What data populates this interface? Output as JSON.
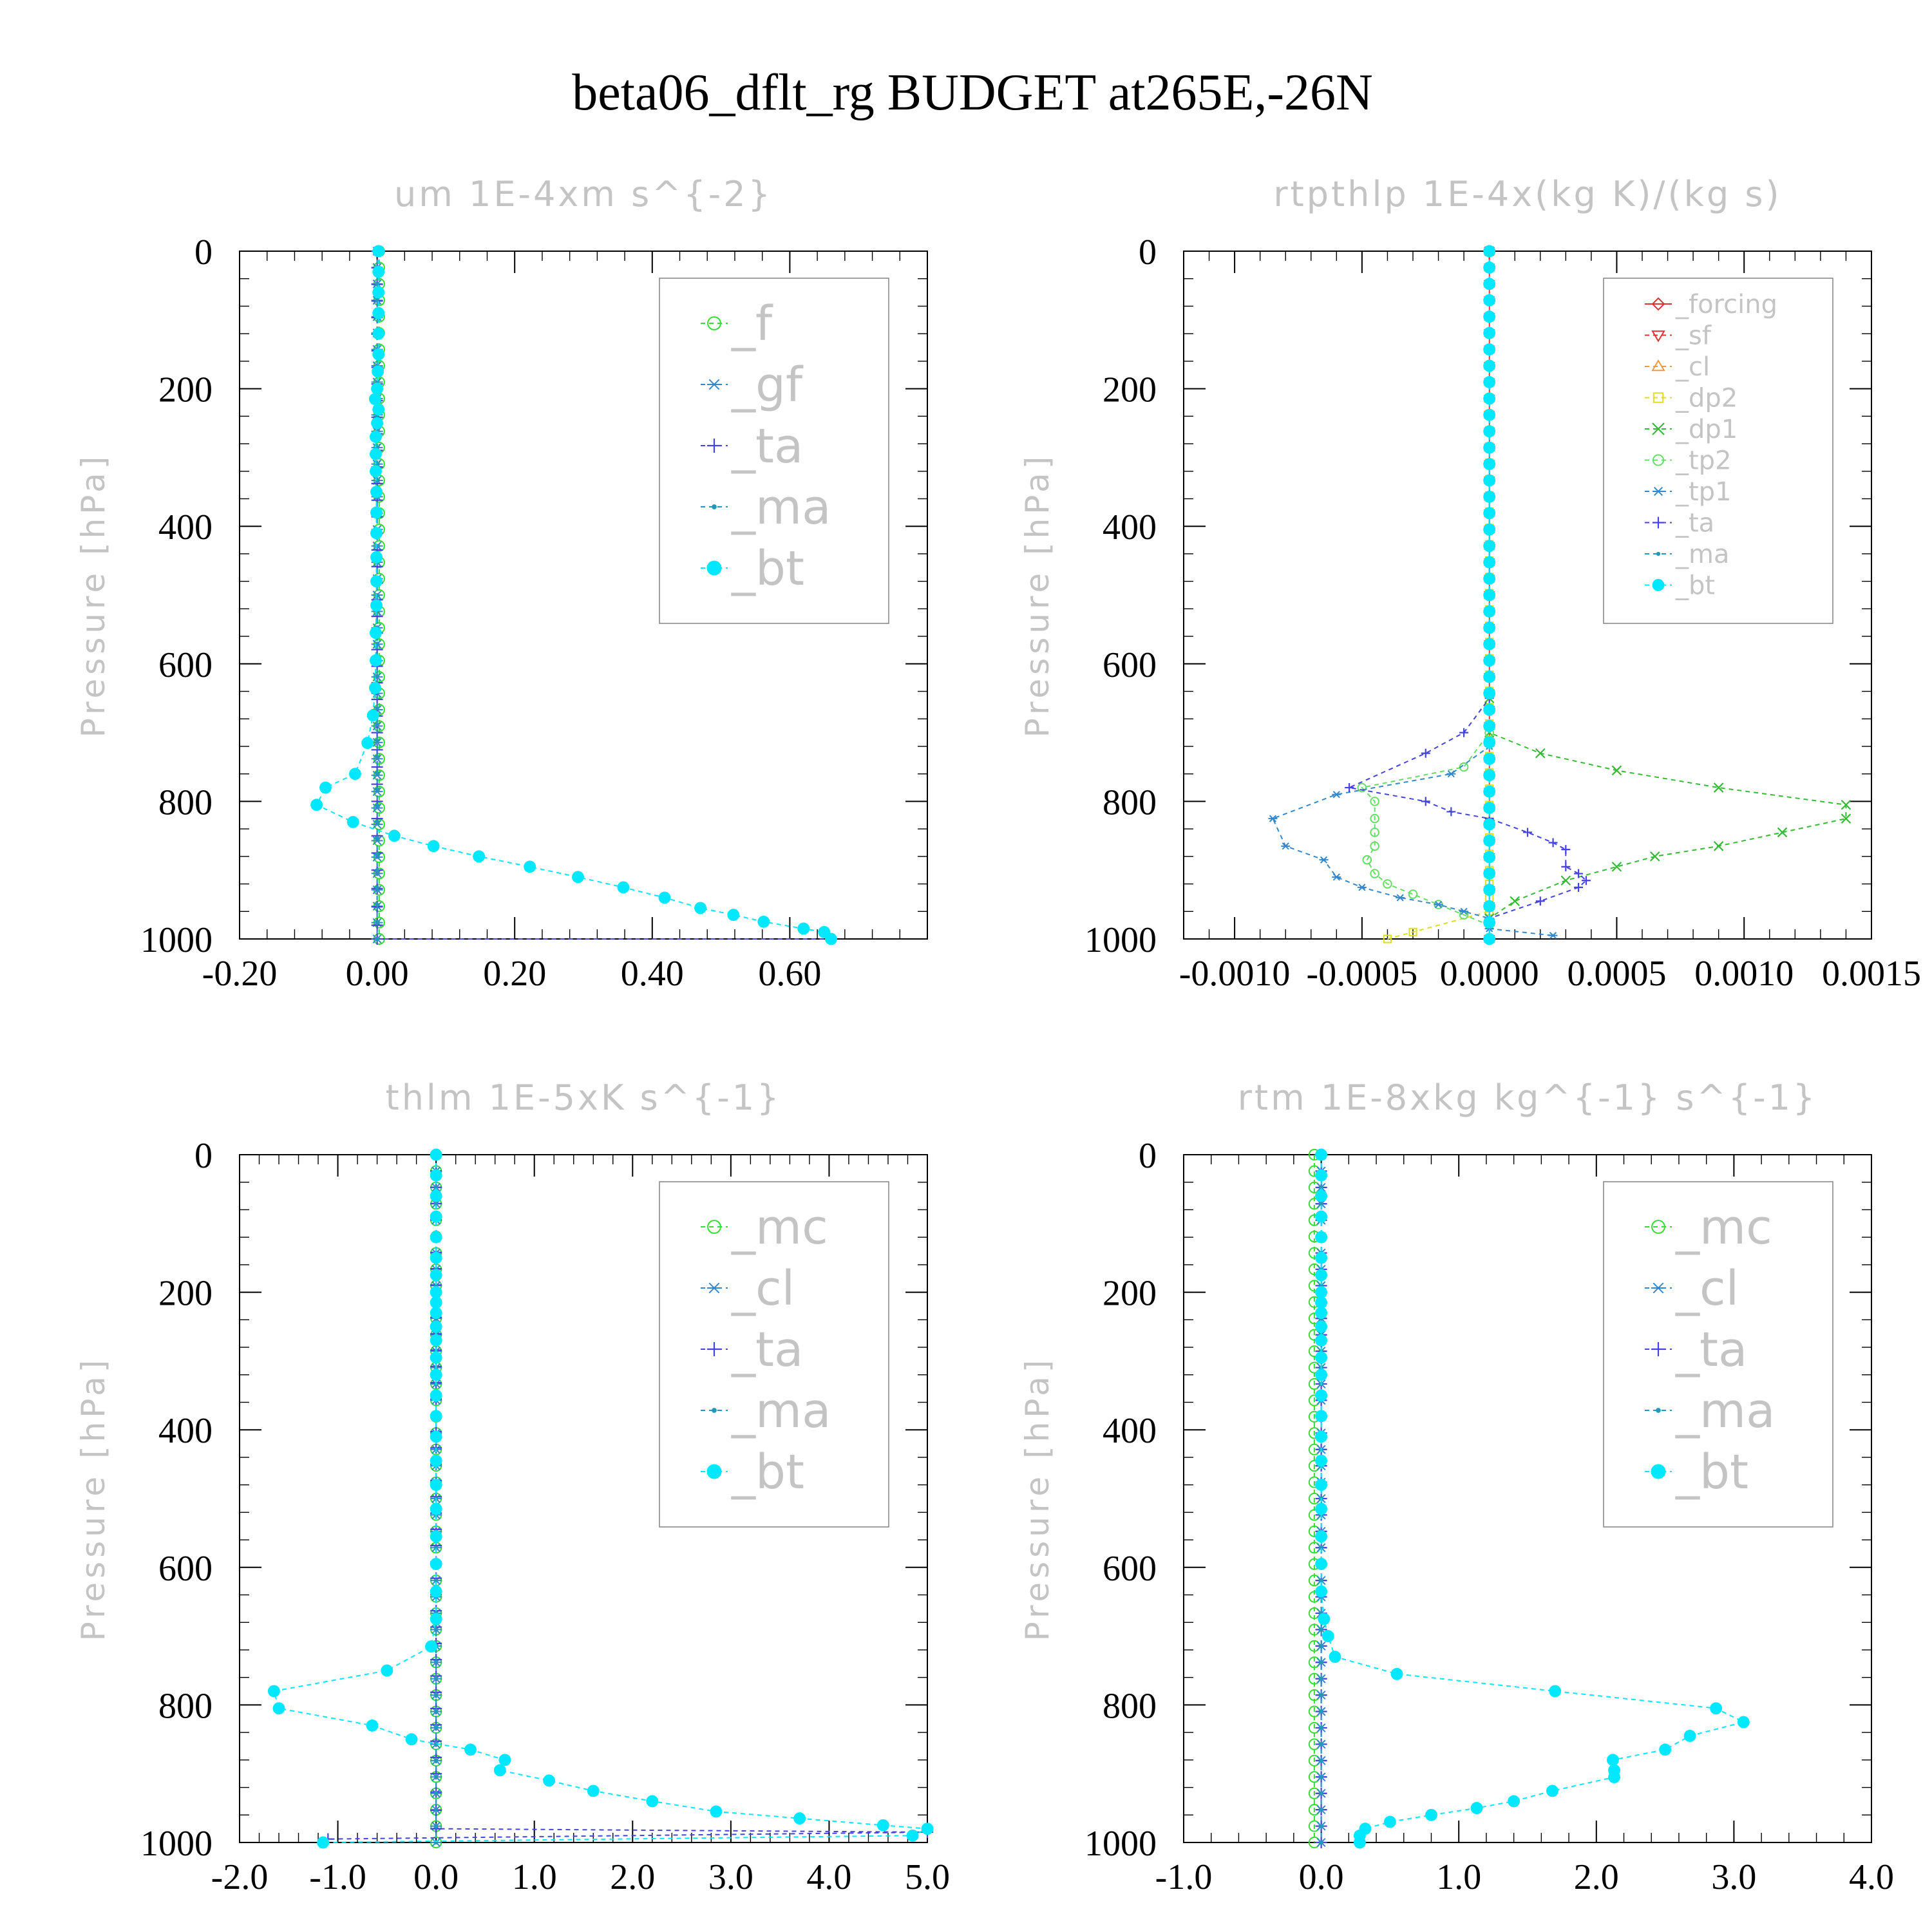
{
  "page_title": "beta06_dflt_rg  BUDGET at265E,-26N",
  "chart_data": [
    {
      "type": "line",
      "title": "um  1E-4xm s^{-2}",
      "ylabel": "Pressure [hPa]",
      "xlim": [
        -0.2,
        0.8
      ],
      "ylim": [
        1000,
        0
      ],
      "y_inverted": true,
      "xticks": [
        -0.2,
        0.0,
        0.2,
        0.4,
        0.6
      ],
      "xtick_labels": [
        "-0.20",
        "0.00",
        "0.20",
        "0.40",
        "0.60"
      ],
      "yticks": [
        0,
        200,
        400,
        600,
        800,
        1000
      ],
      "ytick_labels": [
        "0",
        "200",
        "400",
        "600",
        "800",
        "1000"
      ],
      "legend_position": "top-right",
      "legend_size": "large",
      "series": [
        {
          "name": "_f",
          "color": "#33dd33",
          "marker": "circle",
          "style": "dashed",
          "x": [
            0.003,
            0.003
          ],
          "y": [
            0,
            1000
          ]
        },
        {
          "name": "_gf",
          "color": "#3388cc",
          "marker": "asterisk",
          "style": "dashed",
          "x": [
            0.0,
            0.0
          ],
          "y": [
            0,
            1000
          ]
        },
        {
          "name": "_ta",
          "color": "#4444dd",
          "marker": "plus",
          "style": "dashed",
          "x": [
            0.0,
            0.0,
            0.0,
            0.0,
            0.0,
            0.66
          ],
          "y": [
            0,
            700,
            900,
            980,
            1000,
            1000
          ]
        },
        {
          "name": "_ma",
          "color": "#2299bb",
          "marker": "dot",
          "style": "dashed",
          "x": [
            0.0,
            0.0,
            0.0,
            0.0
          ],
          "y": [
            0,
            500,
            900,
            1000
          ]
        },
        {
          "name": "_bt",
          "color": "#00e8ff",
          "marker": "filled-circle",
          "style": "dashed",
          "x": [
            0.002,
            0.002,
            0.002,
            0.002,
            0.002,
            0.002,
            0.001,
            0.0,
            -0.003,
            0.002,
            0.0,
            -0.002,
            -0.002,
            -0.002,
            -0.001,
            -0.001,
            -0.001,
            -0.001,
            -0.001,
            -0.001,
            -0.002,
            -0.002,
            -0.003,
            -0.006,
            -0.014,
            -0.032,
            -0.075,
            -0.088,
            -0.035,
            0.025,
            0.082,
            0.148,
            0.222,
            0.292,
            0.358,
            0.418,
            0.47,
            0.518,
            0.562,
            0.62,
            0.65,
            0.66
          ],
          "y": [
            0,
            30,
            60,
            90,
            120,
            150,
            175,
            200,
            215,
            230,
            250,
            270,
            295,
            320,
            350,
            380,
            410,
            445,
            480,
            515,
            555,
            595,
            635,
            675,
            715,
            760,
            780,
            805,
            830,
            850,
            865,
            880,
            895,
            910,
            925,
            940,
            955,
            965,
            975,
            985,
            990,
            1000
          ]
        }
      ]
    },
    {
      "type": "line",
      "title": "rtpthlp  1E-4x(kg K)/(kg s)",
      "ylabel": "Pressure [hPa]",
      "xlim": [
        -0.0012,
        0.0015
      ],
      "ylim": [
        1000,
        0
      ],
      "y_inverted": true,
      "xticks": [
        -0.001,
        -0.0005,
        0.0,
        0.0005,
        0.001,
        0.0015
      ],
      "xtick_labels": [
        "-0.0010",
        "-0.0005",
        "0.0000",
        "0.0005",
        "0.0010",
        "0.0015"
      ],
      "yticks": [
        0,
        200,
        400,
        600,
        800,
        1000
      ],
      "ytick_labels": [
        "0",
        "200",
        "400",
        "600",
        "800",
        "1000"
      ],
      "legend_position": "top-right",
      "legend_size": "small",
      "series": [
        {
          "name": "_forcing",
          "color": "#dd3333",
          "marker": "diamond",
          "style": "solid",
          "x": [
            0.0,
            0.0
          ],
          "y": [
            0,
            1000
          ]
        },
        {
          "name": "_sf",
          "color": "#dd3333",
          "marker": "triangle-down",
          "style": "dashed",
          "x": [
            0.0,
            0.0
          ],
          "y": [
            0,
            1000
          ]
        },
        {
          "name": "_cl",
          "color": "#ee9944",
          "marker": "triangle-up",
          "style": "dashed",
          "x": [
            0.0,
            0.0
          ],
          "y": [
            0,
            1000
          ]
        },
        {
          "name": "_dp2",
          "color": "#dddd22",
          "marker": "square",
          "style": "dashed",
          "x": [
            0.0,
            0.0,
            0.0,
            -0.0003,
            -0.0004
          ],
          "y": [
            0,
            900,
            960,
            990,
            1000
          ]
        },
        {
          "name": "_dp1",
          "color": "#33bb33",
          "marker": "x",
          "style": "dashed",
          "x": [
            0.0,
            0.0,
            0.0,
            0.0002,
            0.0005,
            0.0009,
            0.0014,
            0.0014,
            0.00115,
            0.0009,
            0.00065,
            0.0005,
            0.0003,
            0.0001,
            0.0
          ],
          "y": [
            0,
            650,
            700,
            730,
            755,
            780,
            805,
            825,
            845,
            865,
            880,
            895,
            915,
            945,
            970
          ]
        },
        {
          "name": "_tp2",
          "color": "#66dd66",
          "marker": "circle",
          "style": "dashed",
          "x": [
            0.0,
            0.0,
            -0.0001,
            -0.0005,
            -0.00045,
            -0.00045,
            -0.00045,
            -0.00045,
            -0.00048,
            -0.00045,
            -0.0004,
            -0.0003,
            -0.0002,
            -0.0001,
            0.0
          ],
          "y": [
            0,
            700,
            750,
            780,
            800,
            825,
            845,
            865,
            885,
            905,
            920,
            935,
            950,
            965,
            980
          ]
        },
        {
          "name": "_tp1",
          "color": "#3388cc",
          "marker": "asterisk",
          "style": "dashed",
          "x": [
            0.0,
            0.0,
            -0.00015,
            -0.0006,
            -0.00085,
            -0.0008,
            -0.00065,
            -0.0006,
            -0.0005,
            -0.00035,
            -0.0002,
            -0.0001,
            0.0,
            0.0,
            0.00025
          ],
          "y": [
            0,
            720,
            760,
            790,
            825,
            865,
            885,
            910,
            925,
            940,
            950,
            960,
            970,
            985,
            995
          ]
        },
        {
          "name": "_ta",
          "color": "#4444dd",
          "marker": "plus",
          "style": "dashed",
          "x": [
            0.0,
            0.0,
            -0.0001,
            -0.00025,
            -0.00055,
            -0.00025,
            -0.00015,
            0.0,
            0.00015,
            0.00025,
            0.0003,
            0.0003,
            0.00035,
            0.00038,
            0.00035,
            0.0002,
            0.0
          ],
          "y": [
            0,
            650,
            700,
            730,
            780,
            800,
            815,
            825,
            845,
            860,
            870,
            895,
            905,
            915,
            925,
            945,
            970
          ]
        },
        {
          "name": "_ma",
          "color": "#2299bb",
          "marker": "dot",
          "style": "dashed",
          "x": [
            0.0,
            0.0
          ],
          "y": [
            0,
            1000
          ]
        },
        {
          "name": "_bt",
          "color": "#00e8ff",
          "marker": "filled-circle",
          "style": "dashed",
          "x": [
            0.0,
            0.0
          ],
          "y": [
            0,
            1000
          ]
        }
      ]
    },
    {
      "type": "line",
      "title": "thlm  1E-5xK s^{-1}",
      "ylabel": "Pressure [hPa]",
      "xlim": [
        -2.0,
        5.0
      ],
      "ylim": [
        1000,
        0
      ],
      "y_inverted": true,
      "xticks": [
        -2.0,
        -1.0,
        0.0,
        1.0,
        2.0,
        3.0,
        4.0,
        5.0
      ],
      "xtick_labels": [
        "-2.0",
        "-1.0",
        "0.0",
        "1.0",
        "2.0",
        "3.0",
        "4.0",
        "5.0"
      ],
      "yticks": [
        0,
        200,
        400,
        600,
        800,
        1000
      ],
      "ytick_labels": [
        "0",
        "200",
        "400",
        "600",
        "800",
        "1000"
      ],
      "legend_position": "top-right",
      "legend_size": "large",
      "series": [
        {
          "name": "_mc",
          "color": "#33dd33",
          "marker": "circle",
          "style": "dashed",
          "x": [
            0.0,
            0.0
          ],
          "y": [
            0,
            1000
          ]
        },
        {
          "name": "_cl",
          "color": "#3388cc",
          "marker": "asterisk",
          "style": "dashed",
          "x": [
            0.0,
            0.0
          ],
          "y": [
            0,
            1000
          ]
        },
        {
          "name": "_ta",
          "color": "#4444dd",
          "marker": "plus",
          "style": "dashed",
          "x": [
            0.0,
            0.0,
            0.0,
            5.0,
            -1.1
          ],
          "y": [
            0,
            900,
            980,
            985,
            995
          ]
        },
        {
          "name": "_ma",
          "color": "#2299bb",
          "marker": "dot",
          "style": "dashed",
          "x": [
            0.0,
            0.0
          ],
          "y": [
            0,
            1000
          ]
        },
        {
          "name": "_bt",
          "color": "#00e8ff",
          "marker": "filled-circle",
          "style": "dashed",
          "x": [
            0.0,
            0.0,
            0.0,
            0.0,
            0.0,
            0.0,
            0.0,
            0.0,
            0.0,
            0.0,
            0.0,
            0.0,
            0.0,
            0.0,
            0.0,
            0.0,
            0.0,
            0.0,
            0.0,
            0.0,
            0.0,
            0.0,
            0.0,
            0.0,
            -0.05,
            -0.5,
            -1.65,
            -1.6,
            -0.65,
            -0.25,
            0.35,
            0.7,
            0.65,
            1.15,
            1.6,
            2.2,
            2.85,
            3.7,
            4.55,
            5.0,
            4.85,
            -1.15
          ],
          "y": [
            0,
            30,
            60,
            90,
            120,
            150,
            175,
            200,
            215,
            230,
            250,
            270,
            295,
            320,
            350,
            380,
            410,
            445,
            480,
            515,
            555,
            595,
            635,
            675,
            715,
            750,
            780,
            805,
            830,
            850,
            865,
            880,
            895,
            910,
            925,
            940,
            955,
            965,
            975,
            980,
            990,
            1000
          ]
        }
      ]
    },
    {
      "type": "line",
      "title": "rtm  1E-8xkg kg^{-1} s^{-1}",
      "ylabel": "Pressure [hPa]",
      "xlim": [
        -1.0,
        4.0
      ],
      "ylim": [
        1000,
        0
      ],
      "y_inverted": true,
      "xticks": [
        -1.0,
        0.0,
        1.0,
        2.0,
        3.0,
        4.0
      ],
      "xtick_labels": [
        "-1.0",
        "0.0",
        "1.0",
        "2.0",
        "3.0",
        "4.0"
      ],
      "yticks": [
        0,
        200,
        400,
        600,
        800,
        1000
      ],
      "ytick_labels": [
        "0",
        "200",
        "400",
        "600",
        "800",
        "1000"
      ],
      "legend_position": "top-right",
      "legend_size": "large",
      "series": [
        {
          "name": "_mc",
          "color": "#33dd33",
          "marker": "circle",
          "style": "dashed",
          "x": [
            -0.05,
            -0.05
          ],
          "y": [
            0,
            1000
          ]
        },
        {
          "name": "_cl",
          "color": "#3388cc",
          "marker": "asterisk",
          "style": "dashed",
          "x": [
            0.0,
            0.0
          ],
          "y": [
            0,
            1000
          ]
        },
        {
          "name": "_ta",
          "color": "#4444dd",
          "marker": "plus",
          "style": "dashed",
          "x": [
            0.0,
            0.0
          ],
          "y": [
            0,
            1000
          ]
        },
        {
          "name": "_ma",
          "color": "#2299bb",
          "marker": "dot",
          "style": "dashed",
          "x": [
            0.0,
            0.0
          ],
          "y": [
            0,
            1000
          ]
        },
        {
          "name": "_bt",
          "color": "#00e8ff",
          "marker": "filled-circle",
          "style": "dashed",
          "x": [
            0.0,
            0.0,
            0.0,
            0.0,
            0.0,
            0.0,
            0.0,
            0.0,
            0.0,
            0.0,
            0.0,
            0.0,
            0.0,
            0.0,
            0.0,
            0.0,
            0.0,
            0.0,
            0.0,
            0.0,
            0.0,
            0.0,
            0.0,
            0.02,
            0.05,
            0.1,
            0.55,
            1.7,
            2.87,
            3.07,
            2.68,
            2.5,
            2.12,
            2.13,
            2.13,
            1.68,
            1.4,
            1.13,
            0.8,
            0.5,
            0.32,
            0.28,
            0.28
          ],
          "y": [
            0,
            30,
            60,
            90,
            120,
            150,
            175,
            200,
            215,
            230,
            250,
            270,
            295,
            320,
            350,
            380,
            410,
            445,
            480,
            515,
            555,
            595,
            635,
            675,
            700,
            730,
            755,
            780,
            805,
            825,
            845,
            865,
            880,
            895,
            905,
            925,
            940,
            950,
            960,
            970,
            980,
            990,
            1000
          ]
        }
      ]
    }
  ]
}
